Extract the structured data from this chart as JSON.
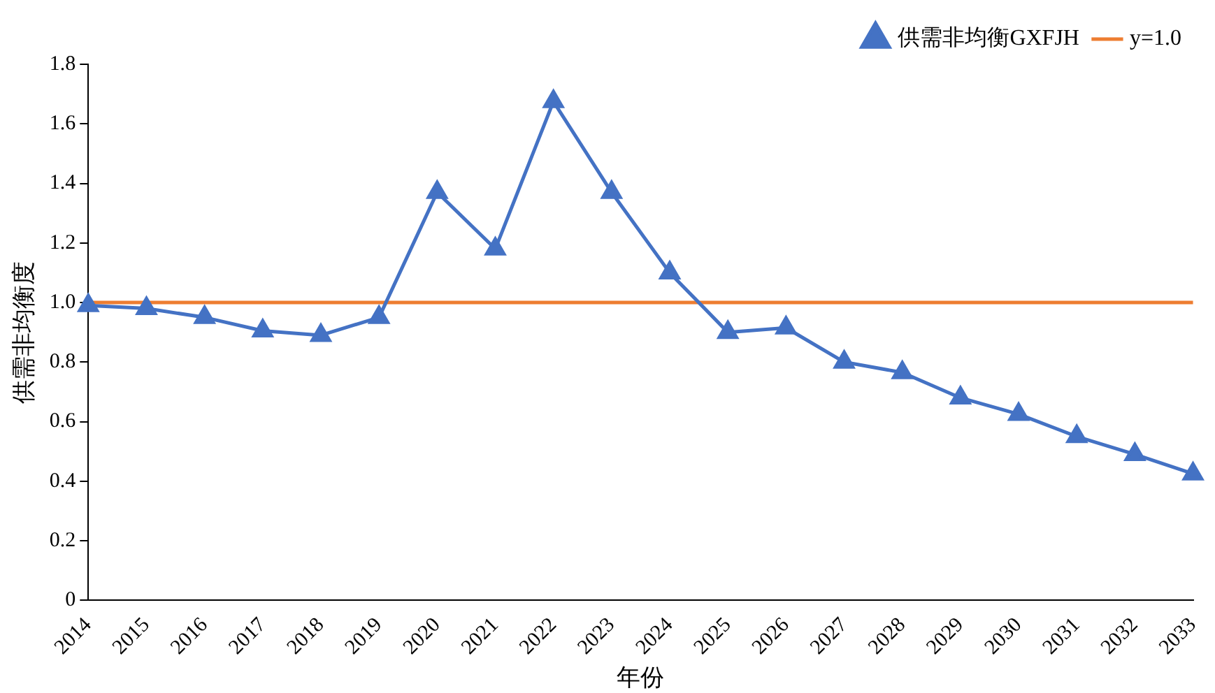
{
  "chart_data": {
    "type": "line",
    "xlabel": "年份",
    "ylabel": "供需非均衡度",
    "categories": [
      "2014",
      "2015",
      "2016",
      "2017",
      "2018",
      "2019",
      "2020",
      "2021",
      "2022",
      "2023",
      "2024",
      "2025",
      "2026",
      "2027",
      "2028",
      "2029",
      "2030",
      "2031",
      "2032",
      "2033"
    ],
    "series": [
      {
        "name": "供需非均衡GXFJH",
        "color": "#4472c4",
        "values": [
          0.99,
          0.98,
          0.95,
          0.905,
          0.89,
          0.95,
          1.37,
          1.18,
          1.675,
          1.37,
          1.1,
          0.9,
          0.915,
          0.8,
          0.765,
          0.68,
          0.625,
          0.55,
          0.49,
          0.425
        ]
      }
    ],
    "ref_lines": [
      {
        "axis": "y",
        "value": 1.0,
        "label": "y=1.0",
        "color": "#ed7d31"
      }
    ],
    "ylim": [
      0,
      1.8
    ],
    "yticks": [
      0,
      0.2,
      0.4,
      0.6,
      0.8,
      {
        "value": 1,
        "label": "1.0"
      },
      1.2,
      1.4,
      1.6,
      1.8
    ],
    "grid": false,
    "legend": "top right",
    "marker": "triangle",
    "line_style": "solid"
  }
}
